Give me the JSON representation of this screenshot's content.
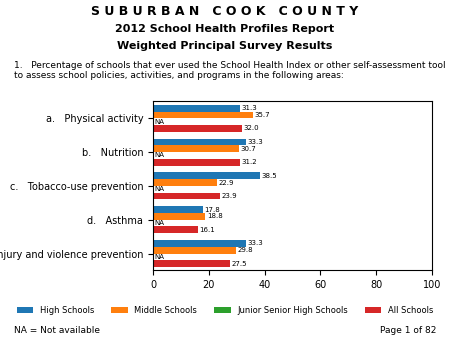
{
  "chart_data": {
    "type": "bar",
    "orientation": "horizontal",
    "title": "S U B U R B A N   C O O K   C O U N T Y",
    "subtitle": [
      "2012 School Health Profiles Report",
      "Weighted Principal Survey Results"
    ],
    "annotations": [
      "1.   Percentage of schools that ever used the School Health Index or other self-assessment tool to assess school policies, activities, and programs in the following areas:",
      "NA = Not available",
      "Page 1 of 82"
    ],
    "categories": [
      "a.   Physical activity",
      "b.   Nutrition",
      "c.   Tobacco-use prevention",
      "d.   Asthma",
      "e.   Injury and violence prevention"
    ],
    "series": [
      {
        "name": "High Schools",
        "values": [
          31.3,
          33.3,
          38.5,
          17.8,
          33.3
        ]
      },
      {
        "name": "Middle Schools",
        "values": [
          35.7,
          30.7,
          22.9,
          18.8,
          29.8
        ]
      },
      {
        "name": "Junior Senior High Schools",
        "values": [
          null,
          null,
          null,
          null,
          null
        ],
        "value_labels": [
          "NA",
          "NA",
          "NA",
          "NA",
          "NA"
        ]
      },
      {
        "name": "All Schools",
        "values": [
          32.0,
          31.2,
          23.9,
          16.1,
          27.5
        ]
      }
    ],
    "xlim": [
      0,
      100
    ],
    "xticks": [
      0,
      20,
      40,
      60,
      80,
      100
    ],
    "data_labels": true,
    "grid": false,
    "legend": "lower center"
  }
}
